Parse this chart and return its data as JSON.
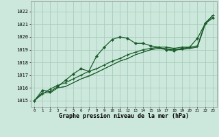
{
  "title": "Graphe pression niveau de la mer (hPa)",
  "bg_color": "#cce8dc",
  "grid_color": "#aaccbb",
  "line_color": "#1a5c2a",
  "x_ticks": [
    0,
    1,
    2,
    3,
    4,
    5,
    6,
    7,
    8,
    9,
    10,
    11,
    12,
    13,
    14,
    15,
    16,
    17,
    18,
    19,
    20,
    21,
    22,
    23
  ],
  "ylim": [
    1014.5,
    1022.8
  ],
  "yticks": [
    1015,
    1016,
    1017,
    1018,
    1019,
    1020,
    1021,
    1022
  ],
  "series": {
    "wavy": [
      1015.0,
      1015.8,
      1015.7,
      1016.1,
      1016.6,
      1017.1,
      1017.5,
      1017.3,
      1018.5,
      1019.2,
      1019.8,
      1020.0,
      1019.9,
      1019.5,
      1019.5,
      1019.3,
      1019.2,
      1019.0,
      1018.9,
      1019.1,
      1019.2,
      1019.9,
      1021.05,
      1021.5
    ],
    "straight": [
      1015.0,
      1015.5,
      1015.9,
      1016.2,
      1016.4,
      1016.7,
      1017.0,
      1017.3,
      1017.5,
      1017.8,
      1018.1,
      1018.3,
      1018.6,
      1018.8,
      1019.0,
      1019.1,
      1019.2,
      1019.2,
      1019.1,
      1019.2,
      1019.2,
      1019.3,
      1021.1,
      1021.7
    ],
    "mid1": [
      1015.0,
      1015.6,
      1015.6,
      1016.0,
      1016.1,
      1016.4,
      1016.7,
      1016.9,
      1017.2,
      1017.5,
      1017.8,
      1018.1,
      1018.3,
      1018.6,
      1018.8,
      1019.0,
      1019.1,
      1019.1,
      1019.0,
      1019.1,
      1019.1,
      1019.2,
      1021.0,
      1021.7
    ],
    "mid2": [
      1015.0,
      1015.6,
      1015.6,
      1016.0,
      1016.1,
      1016.4,
      1016.7,
      1016.95,
      1017.2,
      1017.5,
      1017.8,
      1018.1,
      1018.3,
      1018.6,
      1018.8,
      1019.0,
      1019.1,
      1019.0,
      1019.0,
      1019.0,
      1019.1,
      1019.2,
      1021.0,
      1021.7
    ]
  }
}
